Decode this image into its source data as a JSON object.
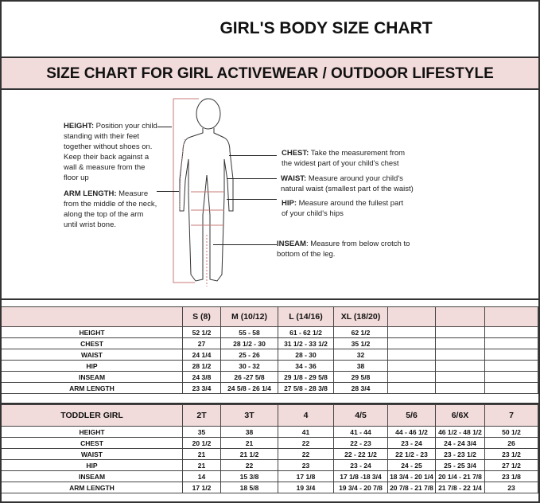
{
  "title": "GIRL'S BODY SIZE CHART",
  "subtitle": "SIZE CHART FOR GIRL ACTIVEWEAR / OUTDOOR LIFESTYLE",
  "colors": {
    "band": "#f2dcdb",
    "guide_line": "#c87a7a"
  },
  "guide": {
    "height": {
      "label": "HEIGHT:",
      "text": " Position your child standing with their feet together without shoes on. Keep their back against a wall & measure from the floor up"
    },
    "arm": {
      "label": "ARM LENGTH:",
      "text": "  Measure from the middle of the neck, along the top of the arm until wrist bone."
    },
    "chest": {
      "label": "CHEST:",
      "text": " Take the measurement from the widest part of your child's chest"
    },
    "waist": {
      "label": "WAIST:",
      "text": " Measure around your child's natural waist (smallest part of the waist)"
    },
    "hip": {
      "label": "HIP:",
      "text": " Measure around the fullest part of your child's hips"
    },
    "inseam": {
      "label": "INSEAM",
      "text": ": Measure from below crotch to bottom of the leg."
    }
  },
  "girl_table": {
    "header": [
      "",
      "S (8)",
      "M (10/12)",
      "L (14/16)",
      "XL (18/20)",
      "",
      "",
      ""
    ],
    "rows": [
      [
        "HEIGHT",
        "52 1/2",
        "55 - 58",
        "61 - 62 1/2",
        "62 1/2",
        "",
        "",
        ""
      ],
      [
        "CHEST",
        "27",
        "28 1/2 - 30",
        "31 1/2 - 33 1/2",
        "35 1/2",
        "",
        "",
        ""
      ],
      [
        "WAIST",
        "24 1/4",
        "25 - 26",
        "28 - 30",
        "32",
        "",
        "",
        ""
      ],
      [
        "HIP",
        "28 1/2",
        "30 - 32",
        "34 - 36",
        "38",
        "",
        "",
        ""
      ],
      [
        "INSEAM",
        "24 3/8",
        "26 -27 5/8",
        "29 1/8 - 29 5/8",
        "29 5/8",
        "",
        "",
        ""
      ],
      [
        "ARM LENGTH",
        "23 3/4",
        "24 5/8 - 26 1/4",
        "27 5/8 - 28 3/8",
        "28 3/4",
        "",
        "",
        ""
      ]
    ]
  },
  "toddler_table": {
    "header": [
      "TODDLER GIRL",
      "2T",
      "3T",
      "4",
      "4/5",
      "5/6",
      "6/6X",
      "7"
    ],
    "rows": [
      [
        "HEIGHT",
        "35",
        "38",
        "41",
        "41 - 44",
        "44 - 46 1/2",
        "46 1/2 - 48 1/2",
        "50 1/2"
      ],
      [
        "CHEST",
        "20 1/2",
        "21",
        "22",
        "22 - 23",
        "23 - 24",
        "24 - 24 3/4",
        "26"
      ],
      [
        "WAIST",
        "21",
        "21 1/2",
        "22",
        "22 - 22 1/2",
        "22 1/2 - 23",
        "23 - 23 1/2",
        "23 1/2"
      ],
      [
        "HIP",
        "21",
        "22",
        "23",
        "23 - 24",
        "24 - 25",
        "25 - 25 3/4",
        "27 1/2"
      ],
      [
        "INSEAM",
        "14",
        "15 3/8",
        "17 1/8",
        "17 1/8 -18 3/4",
        "18 3/4 - 20 1/4",
        "20 1/4 - 21 7/8",
        "23 1/8"
      ],
      [
        "ARM LENGTH",
        "17 1/2",
        "18 5/8",
        "19 3/4",
        "19 3/4 - 20 7/8",
        "20 7/8 - 21 7/8",
        "21 7/8 - 22 1/4",
        "23"
      ]
    ]
  }
}
